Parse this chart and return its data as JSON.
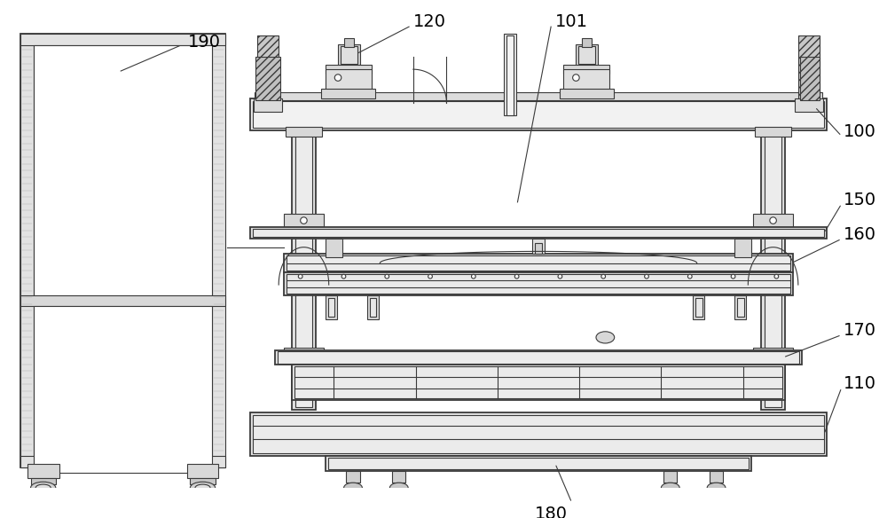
{
  "bg_color": "#ffffff",
  "line_color": "#3a3a3a",
  "figsize": [
    10.0,
    5.84
  ],
  "dpi": 100
}
